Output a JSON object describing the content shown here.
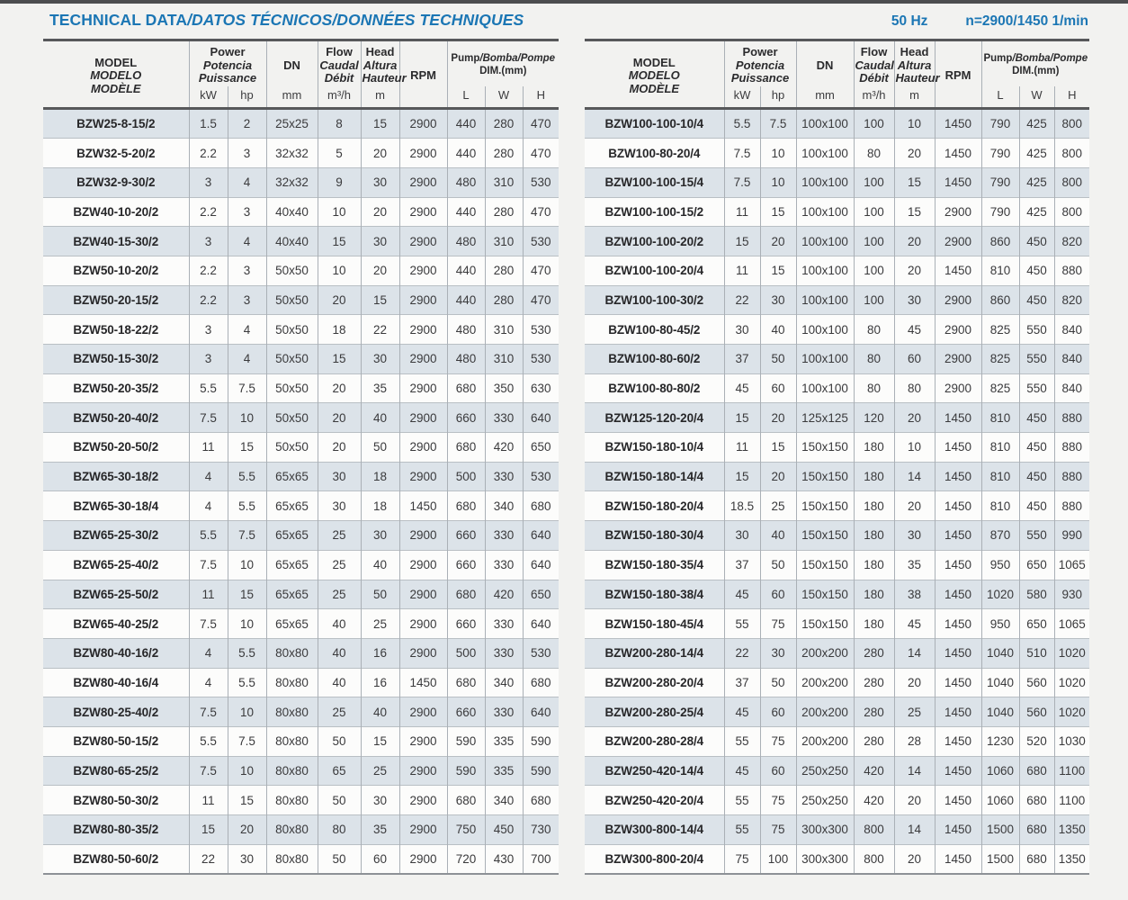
{
  "page": {
    "title_main": "TECHNICAL DATA",
    "title_rest": "/DATOS TÉCNICOS/DONNÉES TECHNIQUES",
    "frequency": "50 Hz",
    "rotation_speed": "n=2900/1450 1/min",
    "accent_color": "#1b76b4",
    "shaded_row_color": "#dce3e9"
  },
  "table_header": {
    "model_lines": [
      "MODEL",
      "MODELO",
      "MODÈLE"
    ],
    "power_lines": [
      "Power",
      "Potencia",
      "Puissance"
    ],
    "power_unit_kw": "kW",
    "power_unit_hp": "hp",
    "dn_label": "DN",
    "dn_unit": "mm",
    "flow_lines": [
      "Flow",
      "Caudal",
      "Débit"
    ],
    "flow_unit": "m³/h",
    "head_lines": [
      "Head",
      "Altura",
      "Hauteur"
    ],
    "head_unit": "m",
    "rpm_label": "RPM",
    "dim_label_main": "Pump",
    "dim_label_rest": "/Bomba/Pompe",
    "dim_sub": "DIM.(mm)",
    "dim_unit_l": "L",
    "dim_unit_w": "W",
    "dim_unit_h": "H"
  },
  "tables": {
    "left_rows": [
      [
        "BZW25-8-15/2",
        "1.5",
        "2",
        "25x25",
        "8",
        "15",
        "2900",
        "440",
        "280",
        "470"
      ],
      [
        "BZW32-5-20/2",
        "2.2",
        "3",
        "32x32",
        "5",
        "20",
        "2900",
        "440",
        "280",
        "470"
      ],
      [
        "BZW32-9-30/2",
        "3",
        "4",
        "32x32",
        "9",
        "30",
        "2900",
        "480",
        "310",
        "530"
      ],
      [
        "BZW40-10-20/2",
        "2.2",
        "3",
        "40x40",
        "10",
        "20",
        "2900",
        "440",
        "280",
        "470"
      ],
      [
        "BZW40-15-30/2",
        "3",
        "4",
        "40x40",
        "15",
        "30",
        "2900",
        "480",
        "310",
        "530"
      ],
      [
        "BZW50-10-20/2",
        "2.2",
        "3",
        "50x50",
        "10",
        "20",
        "2900",
        "440",
        "280",
        "470"
      ],
      [
        "BZW50-20-15/2",
        "2.2",
        "3",
        "50x50",
        "20",
        "15",
        "2900",
        "440",
        "280",
        "470"
      ],
      [
        "BZW50-18-22/2",
        "3",
        "4",
        "50x50",
        "18",
        "22",
        "2900",
        "480",
        "310",
        "530"
      ],
      [
        "BZW50-15-30/2",
        "3",
        "4",
        "50x50",
        "15",
        "30",
        "2900",
        "480",
        "310",
        "530"
      ],
      [
        "BZW50-20-35/2",
        "5.5",
        "7.5",
        "50x50",
        "20",
        "35",
        "2900",
        "680",
        "350",
        "630"
      ],
      [
        "BZW50-20-40/2",
        "7.5",
        "10",
        "50x50",
        "20",
        "40",
        "2900",
        "660",
        "330",
        "640"
      ],
      [
        "BZW50-20-50/2",
        "11",
        "15",
        "50x50",
        "20",
        "50",
        "2900",
        "680",
        "420",
        "650"
      ],
      [
        "BZW65-30-18/2",
        "4",
        "5.5",
        "65x65",
        "30",
        "18",
        "2900",
        "500",
        "330",
        "530"
      ],
      [
        "BZW65-30-18/4",
        "4",
        "5.5",
        "65x65",
        "30",
        "18",
        "1450",
        "680",
        "340",
        "680"
      ],
      [
        "BZW65-25-30/2",
        "5.5",
        "7.5",
        "65x65",
        "25",
        "30",
        "2900",
        "660",
        "330",
        "640"
      ],
      [
        "BZW65-25-40/2",
        "7.5",
        "10",
        "65x65",
        "25",
        "40",
        "2900",
        "660",
        "330",
        "640"
      ],
      [
        "BZW65-25-50/2",
        "11",
        "15",
        "65x65",
        "25",
        "50",
        "2900",
        "680",
        "420",
        "650"
      ],
      [
        "BZW65-40-25/2",
        "7.5",
        "10",
        "65x65",
        "40",
        "25",
        "2900",
        "660",
        "330",
        "640"
      ],
      [
        "BZW80-40-16/2",
        "4",
        "5.5",
        "80x80",
        "40",
        "16",
        "2900",
        "500",
        "330",
        "530"
      ],
      [
        "BZW80-40-16/4",
        "4",
        "5.5",
        "80x80",
        "40",
        "16",
        "1450",
        "680",
        "340",
        "680"
      ],
      [
        "BZW80-25-40/2",
        "7.5",
        "10",
        "80x80",
        "25",
        "40",
        "2900",
        "660",
        "330",
        "640"
      ],
      [
        "BZW80-50-15/2",
        "5.5",
        "7.5",
        "80x80",
        "50",
        "15",
        "2900",
        "590",
        "335",
        "590"
      ],
      [
        "BZW80-65-25/2",
        "7.5",
        "10",
        "80x80",
        "65",
        "25",
        "2900",
        "590",
        "335",
        "590"
      ],
      [
        "BZW80-50-30/2",
        "11",
        "15",
        "80x80",
        "50",
        "30",
        "2900",
        "680",
        "340",
        "680"
      ],
      [
        "BZW80-80-35/2",
        "15",
        "20",
        "80x80",
        "80",
        "35",
        "2900",
        "750",
        "450",
        "730"
      ],
      [
        "BZW80-50-60/2",
        "22",
        "30",
        "80x80",
        "50",
        "60",
        "2900",
        "720",
        "430",
        "700"
      ]
    ],
    "right_rows": [
      [
        "BZW100-100-10/4",
        "5.5",
        "7.5",
        "100x100",
        "100",
        "10",
        "1450",
        "790",
        "425",
        "800"
      ],
      [
        "BZW100-80-20/4",
        "7.5",
        "10",
        "100x100",
        "80",
        "20",
        "1450",
        "790",
        "425",
        "800"
      ],
      [
        "BZW100-100-15/4",
        "7.5",
        "10",
        "100x100",
        "100",
        "15",
        "1450",
        "790",
        "425",
        "800"
      ],
      [
        "BZW100-100-15/2",
        "11",
        "15",
        "100x100",
        "100",
        "15",
        "2900",
        "790",
        "425",
        "800"
      ],
      [
        "BZW100-100-20/2",
        "15",
        "20",
        "100x100",
        "100",
        "20",
        "2900",
        "860",
        "450",
        "820"
      ],
      [
        "BZW100-100-20/4",
        "11",
        "15",
        "100x100",
        "100",
        "20",
        "1450",
        "810",
        "450",
        "880"
      ],
      [
        "BZW100-100-30/2",
        "22",
        "30",
        "100x100",
        "100",
        "30",
        "2900",
        "860",
        "450",
        "820"
      ],
      [
        "BZW100-80-45/2",
        "30",
        "40",
        "100x100",
        "80",
        "45",
        "2900",
        "825",
        "550",
        "840"
      ],
      [
        "BZW100-80-60/2",
        "37",
        "50",
        "100x100",
        "80",
        "60",
        "2900",
        "825",
        "550",
        "840"
      ],
      [
        "BZW100-80-80/2",
        "45",
        "60",
        "100x100",
        "80",
        "80",
        "2900",
        "825",
        "550",
        "840"
      ],
      [
        "BZW125-120-20/4",
        "15",
        "20",
        "125x125",
        "120",
        "20",
        "1450",
        "810",
        "450",
        "880"
      ],
      [
        "BZW150-180-10/4",
        "11",
        "15",
        "150x150",
        "180",
        "10",
        "1450",
        "810",
        "450",
        "880"
      ],
      [
        "BZW150-180-14/4",
        "15",
        "20",
        "150x150",
        "180",
        "14",
        "1450",
        "810",
        "450",
        "880"
      ],
      [
        "BZW150-180-20/4",
        "18.5",
        "25",
        "150x150",
        "180",
        "20",
        "1450",
        "810",
        "450",
        "880"
      ],
      [
        "BZW150-180-30/4",
        "30",
        "40",
        "150x150",
        "180",
        "30",
        "1450",
        "870",
        "550",
        "990"
      ],
      [
        "BZW150-180-35/4",
        "37",
        "50",
        "150x150",
        "180",
        "35",
        "1450",
        "950",
        "650",
        "1065"
      ],
      [
        "BZW150-180-38/4",
        "45",
        "60",
        "150x150",
        "180",
        "38",
        "1450",
        "1020",
        "580",
        "930"
      ],
      [
        "BZW150-180-45/4",
        "55",
        "75",
        "150x150",
        "180",
        "45",
        "1450",
        "950",
        "650",
        "1065"
      ],
      [
        "BZW200-280-14/4",
        "22",
        "30",
        "200x200",
        "280",
        "14",
        "1450",
        "1040",
        "510",
        "1020"
      ],
      [
        "BZW200-280-20/4",
        "37",
        "50",
        "200x200",
        "280",
        "20",
        "1450",
        "1040",
        "560",
        "1020"
      ],
      [
        "BZW200-280-25/4",
        "45",
        "60",
        "200x200",
        "280",
        "25",
        "1450",
        "1040",
        "560",
        "1020"
      ],
      [
        "BZW200-280-28/4",
        "55",
        "75",
        "200x200",
        "280",
        "28",
        "1450",
        "1230",
        "520",
        "1030"
      ],
      [
        "BZW250-420-14/4",
        "45",
        "60",
        "250x250",
        "420",
        "14",
        "1450",
        "1060",
        "680",
        "1100"
      ],
      [
        "BZW250-420-20/4",
        "55",
        "75",
        "250x250",
        "420",
        "20",
        "1450",
        "1060",
        "680",
        "1100"
      ],
      [
        "BZW300-800-14/4",
        "55",
        "75",
        "300x300",
        "800",
        "14",
        "1450",
        "1500",
        "680",
        "1350"
      ],
      [
        "BZW300-800-20/4",
        "75",
        "100",
        "300x300",
        "800",
        "20",
        "1450",
        "1500",
        "680",
        "1350"
      ]
    ]
  }
}
